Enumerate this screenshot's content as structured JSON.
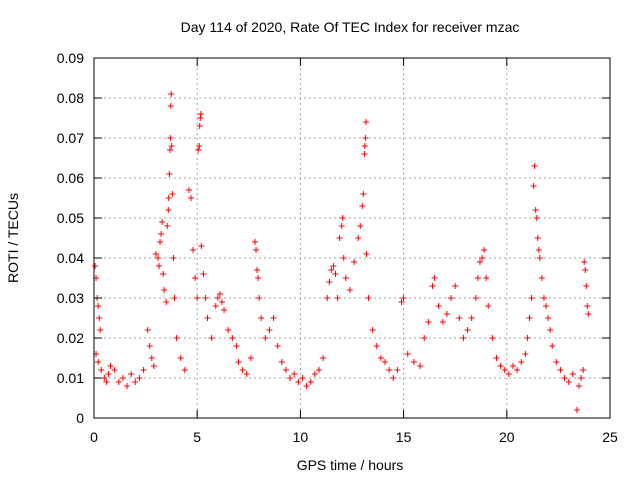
{
  "chart_data": {
    "type": "scatter",
    "title": "Day 114 of 2020, Rate Of TEC Index for receiver mzac",
    "xlabel": "GPS time / hours",
    "ylabel": "ROTI / TECUs",
    "xlim": [
      0,
      25
    ],
    "ylim": [
      0,
      0.09
    ],
    "xticks": [
      0,
      5,
      10,
      15,
      20,
      25
    ],
    "yticks": [
      0,
      0.01,
      0.02,
      0.03,
      0.04,
      0.05,
      0.06,
      0.07,
      0.08,
      0.09
    ],
    "grid": true,
    "marker": "plus",
    "color": "#ff0000",
    "series": [
      {
        "points": [
          [
            0.05,
            0.038
          ],
          [
            0.1,
            0.035
          ],
          [
            0.15,
            0.03
          ],
          [
            0.2,
            0.028
          ],
          [
            0.25,
            0.025
          ],
          [
            0.3,
            0.022
          ],
          [
            0.1,
            0.016
          ],
          [
            0.2,
            0.014
          ],
          [
            0.35,
            0.012
          ],
          [
            0.5,
            0.01
          ],
          [
            0.6,
            0.009
          ],
          [
            0.7,
            0.011
          ],
          [
            0.8,
            0.013
          ],
          [
            1.0,
            0.012
          ],
          [
            1.2,
            0.009
          ],
          [
            1.4,
            0.01
          ],
          [
            1.6,
            0.008
          ],
          [
            1.8,
            0.011
          ],
          [
            2.0,
            0.009
          ],
          [
            2.2,
            0.01
          ],
          [
            2.4,
            0.012
          ],
          [
            2.6,
            0.022
          ],
          [
            2.7,
            0.018
          ],
          [
            2.8,
            0.015
          ],
          [
            2.9,
            0.013
          ],
          [
            3.0,
            0.041
          ],
          [
            3.1,
            0.04
          ],
          [
            3.15,
            0.038
          ],
          [
            3.2,
            0.044
          ],
          [
            3.25,
            0.046
          ],
          [
            3.3,
            0.049
          ],
          [
            3.35,
            0.036
          ],
          [
            3.4,
            0.032
          ],
          [
            3.5,
            0.029
          ],
          [
            3.55,
            0.048
          ],
          [
            3.6,
            0.052
          ],
          [
            3.62,
            0.055
          ],
          [
            3.65,
            0.061
          ],
          [
            3.68,
            0.067
          ],
          [
            3.7,
            0.07
          ],
          [
            3.72,
            0.078
          ],
          [
            3.74,
            0.081
          ],
          [
            3.76,
            0.068
          ],
          [
            3.8,
            0.056
          ],
          [
            3.85,
            0.04
          ],
          [
            3.9,
            0.03
          ],
          [
            4.0,
            0.02
          ],
          [
            4.2,
            0.015
          ],
          [
            4.4,
            0.012
          ],
          [
            4.6,
            0.057
          ],
          [
            4.7,
            0.055
          ],
          [
            4.8,
            0.042
          ],
          [
            4.9,
            0.035
          ],
          [
            5.0,
            0.03
          ],
          [
            5.05,
            0.067
          ],
          [
            5.1,
            0.068
          ],
          [
            5.12,
            0.073
          ],
          [
            5.15,
            0.075
          ],
          [
            5.18,
            0.076
          ],
          [
            5.2,
            0.043
          ],
          [
            5.3,
            0.036
          ],
          [
            5.4,
            0.03
          ],
          [
            5.5,
            0.025
          ],
          [
            5.7,
            0.02
          ],
          [
            5.9,
            0.028
          ],
          [
            6.0,
            0.03
          ],
          [
            6.1,
            0.031
          ],
          [
            6.2,
            0.029
          ],
          [
            6.3,
            0.027
          ],
          [
            6.5,
            0.022
          ],
          [
            6.7,
            0.02
          ],
          [
            6.9,
            0.018
          ],
          [
            7.0,
            0.014
          ],
          [
            7.2,
            0.012
          ],
          [
            7.4,
            0.011
          ],
          [
            7.6,
            0.015
          ],
          [
            7.8,
            0.044
          ],
          [
            7.85,
            0.042
          ],
          [
            7.9,
            0.037
          ],
          [
            7.95,
            0.035
          ],
          [
            8.0,
            0.03
          ],
          [
            8.1,
            0.025
          ],
          [
            8.3,
            0.02
          ],
          [
            8.5,
            0.022
          ],
          [
            8.7,
            0.025
          ],
          [
            8.9,
            0.018
          ],
          [
            9.1,
            0.014
          ],
          [
            9.3,
            0.012
          ],
          [
            9.5,
            0.01
          ],
          [
            9.7,
            0.011
          ],
          [
            9.9,
            0.009
          ],
          [
            10.1,
            0.01
          ],
          [
            10.3,
            0.008
          ],
          [
            10.5,
            0.009
          ],
          [
            10.7,
            0.011
          ],
          [
            10.9,
            0.012
          ],
          [
            11.1,
            0.015
          ],
          [
            11.3,
            0.03
          ],
          [
            11.4,
            0.034
          ],
          [
            11.5,
            0.037
          ],
          [
            11.6,
            0.038
          ],
          [
            11.7,
            0.036
          ],
          [
            11.8,
            0.03
          ],
          [
            11.9,
            0.045
          ],
          [
            12.0,
            0.048
          ],
          [
            12.05,
            0.05
          ],
          [
            12.1,
            0.04
          ],
          [
            12.2,
            0.035
          ],
          [
            12.4,
            0.032
          ],
          [
            12.6,
            0.039
          ],
          [
            12.8,
            0.045
          ],
          [
            12.9,
            0.048
          ],
          [
            13.0,
            0.053
          ],
          [
            13.05,
            0.056
          ],
          [
            13.1,
            0.066
          ],
          [
            13.12,
            0.068
          ],
          [
            13.15,
            0.07
          ],
          [
            13.18,
            0.074
          ],
          [
            13.2,
            0.041
          ],
          [
            13.3,
            0.03
          ],
          [
            13.5,
            0.022
          ],
          [
            13.7,
            0.018
          ],
          [
            13.9,
            0.015
          ],
          [
            14.1,
            0.014
          ],
          [
            14.3,
            0.012
          ],
          [
            14.5,
            0.01
          ],
          [
            14.7,
            0.012
          ],
          [
            14.9,
            0.029
          ],
          [
            15.0,
            0.03
          ],
          [
            15.2,
            0.016
          ],
          [
            15.5,
            0.014
          ],
          [
            15.8,
            0.013
          ],
          [
            16.0,
            0.02
          ],
          [
            16.2,
            0.024
          ],
          [
            16.4,
            0.033
          ],
          [
            16.5,
            0.035
          ],
          [
            16.7,
            0.028
          ],
          [
            16.9,
            0.024
          ],
          [
            17.1,
            0.026
          ],
          [
            17.3,
            0.03
          ],
          [
            17.5,
            0.033
          ],
          [
            17.7,
            0.025
          ],
          [
            17.9,
            0.02
          ],
          [
            18.1,
            0.022
          ],
          [
            18.3,
            0.025
          ],
          [
            18.5,
            0.03
          ],
          [
            18.6,
            0.035
          ],
          [
            18.7,
            0.039
          ],
          [
            18.8,
            0.04
          ],
          [
            18.9,
            0.042
          ],
          [
            19.0,
            0.035
          ],
          [
            19.1,
            0.028
          ],
          [
            19.3,
            0.02
          ],
          [
            19.5,
            0.015
          ],
          [
            19.7,
            0.013
          ],
          [
            19.9,
            0.012
          ],
          [
            20.1,
            0.011
          ],
          [
            20.3,
            0.013
          ],
          [
            20.5,
            0.012
          ],
          [
            20.7,
            0.014
          ],
          [
            20.9,
            0.016
          ],
          [
            21.0,
            0.02
          ],
          [
            21.1,
            0.025
          ],
          [
            21.2,
            0.03
          ],
          [
            21.3,
            0.058
          ],
          [
            21.35,
            0.063
          ],
          [
            21.4,
            0.052
          ],
          [
            21.45,
            0.05
          ],
          [
            21.5,
            0.045
          ],
          [
            21.55,
            0.042
          ],
          [
            21.6,
            0.04
          ],
          [
            21.7,
            0.035
          ],
          [
            21.8,
            0.03
          ],
          [
            21.9,
            0.028
          ],
          [
            22.0,
            0.025
          ],
          [
            22.1,
            0.022
          ],
          [
            22.2,
            0.018
          ],
          [
            22.4,
            0.014
          ],
          [
            22.6,
            0.012
          ],
          [
            22.8,
            0.01
          ],
          [
            23.0,
            0.009
          ],
          [
            23.2,
            0.011
          ],
          [
            23.4,
            0.002
          ],
          [
            23.5,
            0.008
          ],
          [
            23.6,
            0.01
          ],
          [
            23.7,
            0.012
          ],
          [
            23.75,
            0.039
          ],
          [
            23.8,
            0.037
          ],
          [
            23.85,
            0.033
          ],
          [
            23.9,
            0.028
          ],
          [
            23.95,
            0.026
          ]
        ]
      }
    ]
  }
}
